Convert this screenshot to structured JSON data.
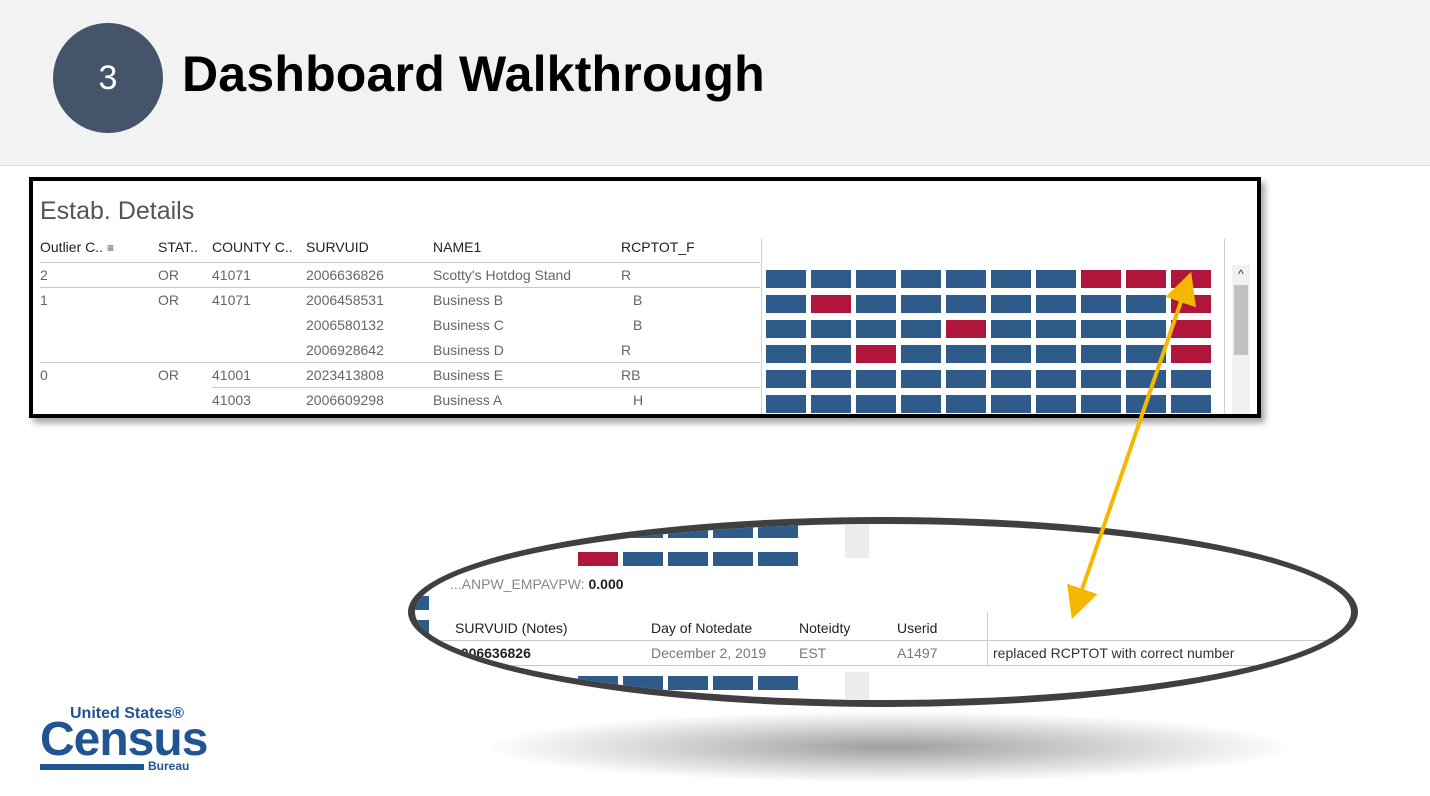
{
  "slide": {
    "step_number": "3",
    "title": "Dashboard Walkthrough"
  },
  "panel": {
    "title": "Estab. Details",
    "columns": [
      "Outlier C..",
      "STAT..",
      "COUNTY C..",
      "SURVUID",
      "NAME1",
      "RCPTOT_F"
    ],
    "rows": [
      {
        "outlier": "2",
        "state": "OR",
        "county": "41071",
        "survuid": "2006636826",
        "name": "Scotty's Hotdog Stand",
        "rcptot_f": "R",
        "tiles": [
          "b",
          "b",
          "b",
          "b",
          "b",
          "b",
          "b",
          "r",
          "r",
          "r"
        ]
      },
      {
        "outlier": "1",
        "state": "OR",
        "county": "41071",
        "survuid": "2006458531",
        "name": "Business B",
        "rcptot_f": "B",
        "tiles": [
          "b",
          "r",
          "b",
          "b",
          "b",
          "b",
          "b",
          "b",
          "b",
          "r"
        ]
      },
      {
        "outlier": "",
        "state": "",
        "county": "",
        "survuid": "2006580132",
        "name": "Business C",
        "rcptot_f": "B",
        "tiles": [
          "b",
          "b",
          "b",
          "b",
          "r",
          "b",
          "b",
          "b",
          "b",
          "r"
        ]
      },
      {
        "outlier": "",
        "state": "",
        "county": "",
        "survuid": "2006928642",
        "name": "Business D",
        "rcptot_f": "R",
        "tiles": [
          "b",
          "b",
          "r",
          "b",
          "b",
          "b",
          "b",
          "b",
          "b",
          "r"
        ]
      },
      {
        "outlier": "0",
        "state": "OR",
        "county": "41001",
        "survuid": "2023413808",
        "name": "Business E",
        "rcptot_f": "RB",
        "tiles": [
          "b",
          "b",
          "b",
          "b",
          "b",
          "b",
          "b",
          "b",
          "b",
          "b"
        ]
      },
      {
        "outlier": "",
        "state": "",
        "county": "41003",
        "survuid": "2006609298",
        "name": "Business A",
        "rcptot_f": "H",
        "tiles": [
          "b",
          "b",
          "b",
          "b",
          "b",
          "b",
          "b",
          "b",
          "b",
          "b"
        ]
      }
    ],
    "scroll_up_glyph": "^"
  },
  "zoom": {
    "metric_label": "...ANPW_EMPAVPW:",
    "metric_value": "0.000",
    "columns": [
      "SURVUID (Notes)",
      "Day of Notedate",
      "Noteidty",
      "Userid"
    ],
    "note": {
      "survuid": "2006636826",
      "date": "December 2, 2019",
      "noteidty": "EST",
      "userid": "A1497",
      "text": "replaced RCPTOT with correct number"
    }
  },
  "logo": {
    "top": "United States®",
    "main": "Census",
    "bottom": "Bureau"
  },
  "colors": {
    "header_band": "#f2f2f2",
    "step_circle": "#44546a",
    "tile_normal": "#2e5b8a",
    "tile_flag": "#b0163c",
    "arrow": "#f5b800",
    "logo": "#205493"
  }
}
